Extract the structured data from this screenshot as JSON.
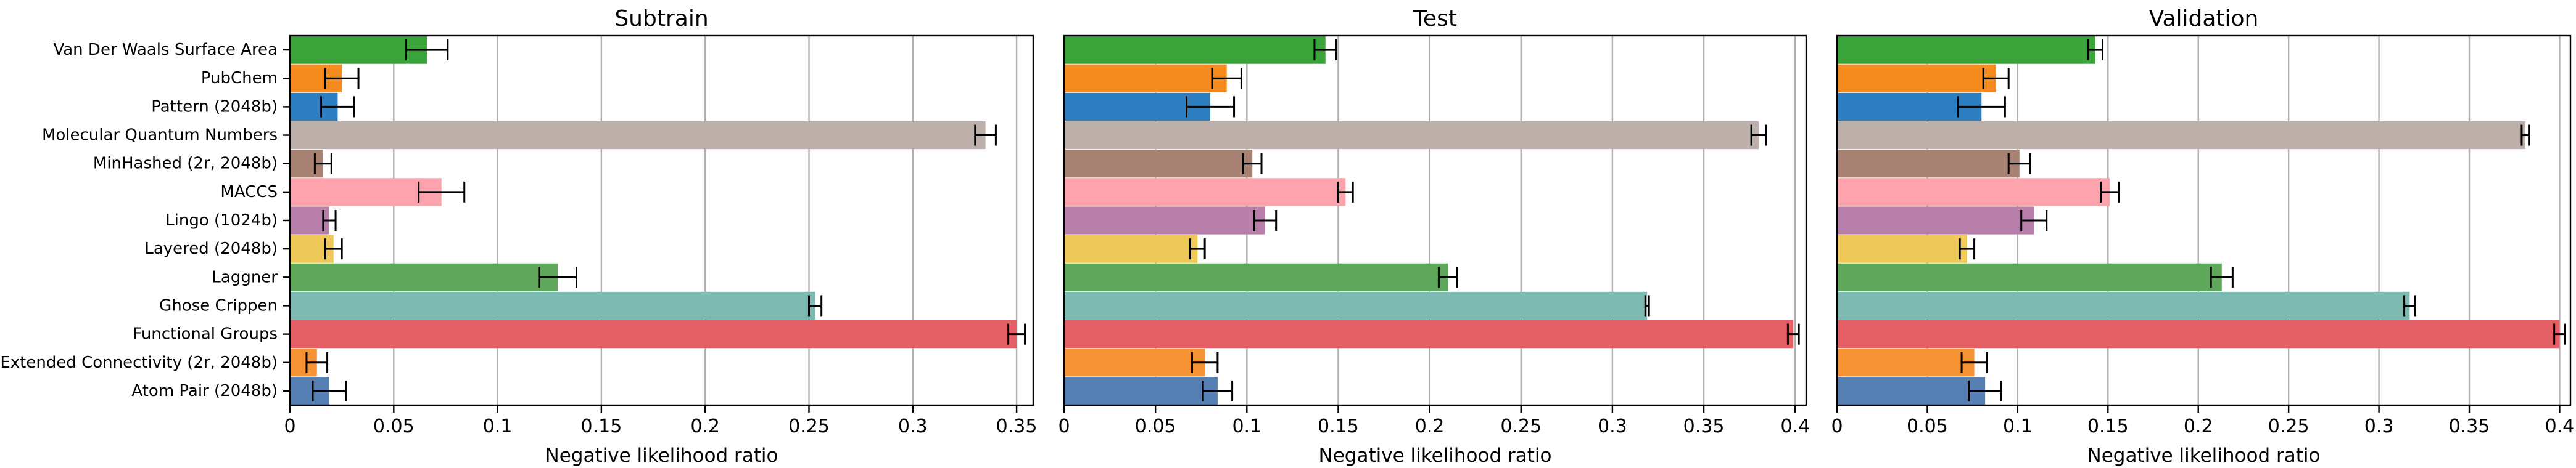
{
  "chart_data": {
    "type": "bar",
    "orientation": "horizontal",
    "xlabel": "Negative likelihood ratio",
    "grid": "vertical",
    "categories": [
      "Van Der Waals Surface Area",
      "PubChem",
      "Pattern (2048b)",
      "Molecular Quantum Numbers",
      "MinHashed (2r, 2048b)",
      "MACCS",
      "Lingo (1024b)",
      "Layered (2048b)",
      "Laggner",
      "Ghose Crippen",
      "Functional Groups",
      "Extended Connectivity (2r, 2048b)",
      "Atom Pair (2048b)"
    ],
    "colors": [
      "#3aa33a",
      "#f58a1f",
      "#2e7fc1",
      "#bdb0aa",
      "#a88272",
      "#fca3ad",
      "#b87fab",
      "#eec95a",
      "#5fa85b",
      "#7fbab3",
      "#e45f66",
      "#f59335",
      "#5680b4"
    ],
    "panels": [
      {
        "title": "Subtrain",
        "xlim": [
          0,
          0.358
        ],
        "xticks": [
          0,
          0.05,
          0.1,
          0.15,
          0.2,
          0.25,
          0.3,
          0.35
        ],
        "xtick_labels": [
          "0",
          "0.05",
          "0.1",
          "0.15",
          "0.2",
          "0.25",
          "0.3",
          "0.35"
        ],
        "values": [
          0.066,
          0.025,
          0.023,
          0.335,
          0.016,
          0.073,
          0.019,
          0.021,
          0.129,
          0.253,
          0.35,
          0.013,
          0.019
        ],
        "errors": [
          0.01,
          0.008,
          0.008,
          0.005,
          0.004,
          0.011,
          0.003,
          0.004,
          0.009,
          0.003,
          0.004,
          0.005,
          0.008
        ]
      },
      {
        "title": "Test",
        "xlim": [
          0,
          0.406
        ],
        "xticks": [
          0,
          0.05,
          0.1,
          0.15,
          0.2,
          0.25,
          0.3,
          0.35,
          0.4
        ],
        "xtick_labels": [
          "0",
          "0.05",
          "0.1",
          "0.15",
          "0.2",
          "0.25",
          "0.3",
          "0.35",
          "0.4"
        ],
        "values": [
          0.143,
          0.089,
          0.08,
          0.38,
          0.103,
          0.154,
          0.11,
          0.073,
          0.21,
          0.319,
          0.399,
          0.077,
          0.084
        ],
        "errors": [
          0.006,
          0.008,
          0.013,
          0.004,
          0.005,
          0.004,
          0.006,
          0.004,
          0.005,
          0.001,
          0.003,
          0.007,
          0.008
        ]
      },
      {
        "title": "Validation",
        "xlim": [
          0,
          0.406
        ],
        "xticks": [
          0,
          0.05,
          0.1,
          0.15,
          0.2,
          0.25,
          0.3,
          0.35,
          0.4
        ],
        "xtick_labels": [
          "0",
          "0.05",
          "0.1",
          "0.15",
          "0.2",
          "0.25",
          "0.3",
          "0.35",
          "0.4"
        ],
        "values": [
          0.143,
          0.088,
          0.08,
          0.381,
          0.101,
          0.151,
          0.109,
          0.072,
          0.213,
          0.317,
          0.4,
          0.076,
          0.082
        ],
        "errors": [
          0.004,
          0.007,
          0.013,
          0.002,
          0.006,
          0.005,
          0.007,
          0.004,
          0.006,
          0.003,
          0.003,
          0.007,
          0.009
        ]
      }
    ]
  }
}
